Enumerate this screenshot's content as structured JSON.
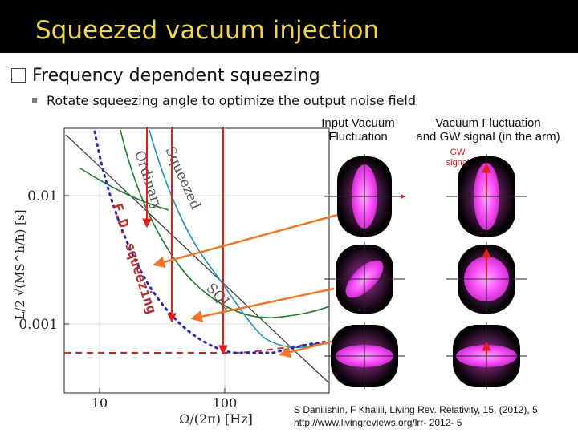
{
  "slide": {
    "title": "Squeezed vacuum injection",
    "bullet1": "Frequency dependent squeezing",
    "bullet2": "Rotate squeezing angle to optimize the output noise field",
    "citation_line1": "S Danilishin, F Khalili, Living Rev. Relativity, 15, (2012), 5",
    "citation_line2": "http://www.livingreviews.org/lrr- 2012- 5"
  },
  "figure": {
    "curve_labels": {
      "ordinary": "Ordinary",
      "squeezed": "Squeezed",
      "sql": "SQL",
      "fd_squeezing": "F.D. squeezing"
    },
    "y_ticks": [
      "0.01",
      "0.001"
    ],
    "x_ticks": [
      "10",
      "100"
    ],
    "y_axis_label": "L/2 √(MS^h/ħ) [s]",
    "x_axis_label": "Ω/(2π) [Hz]",
    "column_headers": {
      "input": [
        "Input Vacuum",
        "Fluctuation"
      ],
      "arm": [
        "Vacuum Fluctuation",
        "and GW signal (in the arm)"
      ]
    },
    "gw_label": [
      "GW",
      "signal"
    ],
    "colors": {
      "ordinary": "#1d7a2a",
      "squeezed": "#2a8fb8",
      "sql": "#333333",
      "fd_squeezing": "#2a2ab0",
      "free_mass": "#c82828",
      "red_arrow": "#e02020",
      "orange_arrow": "#f07828",
      "ellipse": "#ff55ff"
    }
  }
}
